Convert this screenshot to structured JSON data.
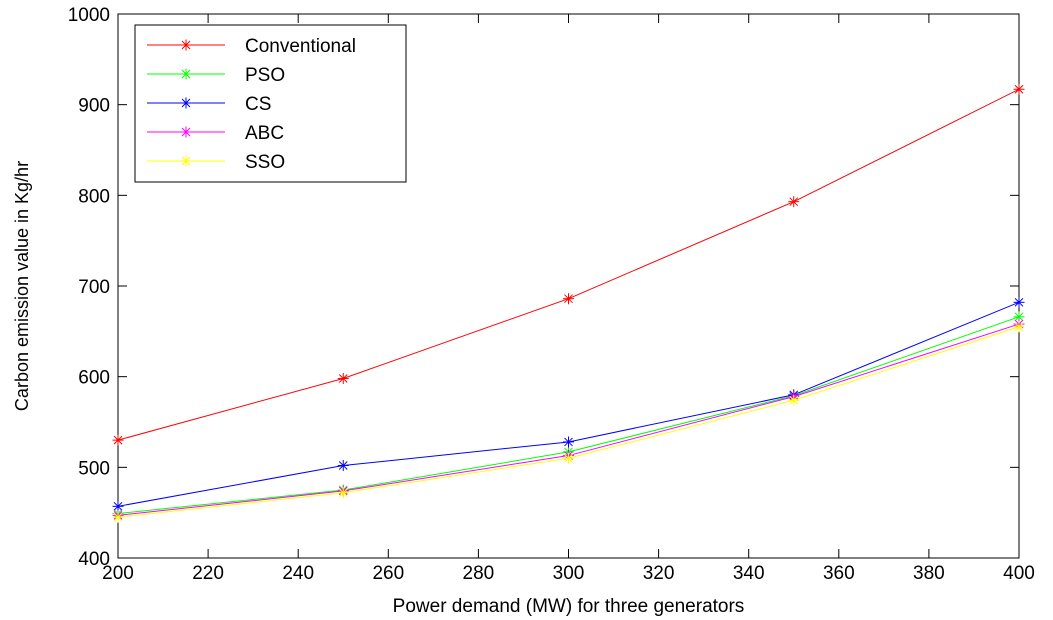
{
  "chart_data": {
    "type": "line",
    "title": "",
    "xlabel": "Power demand (MW) for three generators",
    "ylabel": "Carbon emission value in Kg/hr",
    "xlim": [
      200,
      400
    ],
    "ylim": [
      400,
      1000
    ],
    "x_ticks": [
      "200",
      "220",
      "240",
      "260",
      "280",
      "300",
      "320",
      "340",
      "360",
      "380",
      "400"
    ],
    "y_ticks": [
      "400",
      "500",
      "600",
      "700",
      "800",
      "900",
      "1000"
    ],
    "x": [
      200,
      250,
      300,
      350,
      400
    ],
    "grid": false,
    "legend_position": "top-left",
    "marker": "asterisk",
    "series": [
      {
        "name": "Conventional",
        "color": "#ff0000",
        "values": [
          530,
          598,
          686,
          793,
          917
        ]
      },
      {
        "name": "PSO",
        "color": "#00ff00",
        "values": [
          449,
          475,
          517,
          579,
          666
        ]
      },
      {
        "name": "CS",
        "color": "#0000ff",
        "values": [
          457,
          502,
          528,
          580,
          682
        ]
      },
      {
        "name": "ABC",
        "color": "#ff00ff",
        "values": [
          447,
          474,
          513,
          578,
          658
        ]
      },
      {
        "name": "SSO",
        "color": "#ffff00",
        "values": [
          445,
          472,
          510,
          574,
          655
        ]
      }
    ]
  }
}
